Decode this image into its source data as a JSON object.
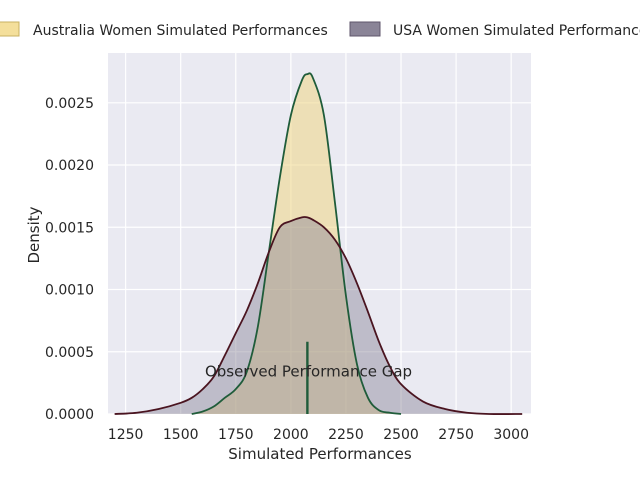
{
  "chart_data": {
    "type": "area",
    "xlabel": "Simulated Performances",
    "ylabel": "Density",
    "xlim": [
      1170,
      3090
    ],
    "ylim": [
      0,
      0.0029
    ],
    "xticks": [
      1250,
      1500,
      1750,
      2000,
      2250,
      2500,
      2750,
      3000
    ],
    "yticks": [
      0,
      0.0005,
      0.001,
      0.0015,
      0.002,
      0.0025
    ],
    "ytick_labels": [
      "0.0000",
      "0.0005",
      "0.0010",
      "0.0015",
      "0.0020",
      "0.0025"
    ],
    "grid": true,
    "legend_placement": "top",
    "series": [
      {
        "name": "Australia Women Simulated Performances",
        "fill": "#f0d479",
        "line": "#1f5c3a",
        "x": [
          1550,
          1600,
          1650,
          1700,
          1750,
          1800,
          1850,
          1900,
          1950,
          2000,
          2050,
          2075,
          2100,
          2150,
          2200,
          2250,
          2300,
          2350,
          2400,
          2450,
          2500
        ],
        "values": [
          0.0,
          2e-05,
          6e-05,
          0.00013,
          0.0002,
          0.00034,
          0.0007,
          0.0013,
          0.0019,
          0.0024,
          0.00268,
          0.00273,
          0.0027,
          0.0024,
          0.0017,
          0.00095,
          0.0004,
          0.00013,
          3e-05,
          1e-05,
          0.0
        ]
      },
      {
        "name": "USA Women Simulated Performances",
        "fill": "#8a8497",
        "line": "#4a1420",
        "x": [
          1200,
          1300,
          1400,
          1500,
          1550,
          1600,
          1650,
          1700,
          1750,
          1800,
          1850,
          1900,
          1950,
          2000,
          2050,
          2075,
          2100,
          2150,
          2200,
          2250,
          2300,
          2350,
          2400,
          2450,
          2500,
          2600,
          2700,
          2800,
          2900,
          3050
        ],
        "values": [
          0.0,
          1e-05,
          4e-05,
          9e-05,
          0.00013,
          0.0002,
          0.0003,
          0.00047,
          0.00065,
          0.00083,
          0.00105,
          0.0013,
          0.0015,
          0.00155,
          0.00158,
          0.00158,
          0.00156,
          0.0015,
          0.0014,
          0.00125,
          0.00105,
          0.00082,
          0.00058,
          0.00038,
          0.00024,
          0.0001,
          4e-05,
          1e-05,
          0.0,
          0.0
        ]
      }
    ],
    "annotations": [
      {
        "text": "Observed Performance Gap",
        "x": 2080,
        "y": 0.00034
      }
    ],
    "marker_line": {
      "x": 2075,
      "y0": 0.0,
      "y1": 0.00058,
      "color": "#1f5c3a"
    }
  }
}
